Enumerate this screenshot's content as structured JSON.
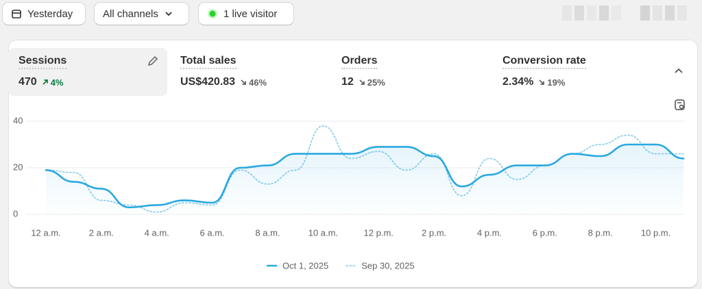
{
  "filters": {
    "date": "Yesterday",
    "channels": "All channels",
    "live": "1 live visitor"
  },
  "metrics": [
    {
      "label": "Sessions",
      "value": "470",
      "change": "4%",
      "direction": "up"
    },
    {
      "label": "Total sales",
      "value": "US$420.83",
      "change": "46%",
      "direction": "down"
    },
    {
      "label": "Orders",
      "value": "12",
      "change": "25%",
      "direction": "down"
    },
    {
      "label": "Conversion rate",
      "value": "2.34%",
      "change": "19%",
      "direction": "down"
    }
  ],
  "chart_data": {
    "type": "line",
    "categories": [
      "12 a.m.",
      null,
      "2 a.m.",
      null,
      "4 a.m.",
      null,
      "6 a.m.",
      null,
      "8 a.m.",
      null,
      "10 a.m.",
      null,
      "12 p.m.",
      null,
      "2 p.m.",
      null,
      "4 p.m.",
      null,
      "6 p.m.",
      null,
      "8 p.m.",
      null,
      "10 p.m.",
      null
    ],
    "series": [
      {
        "name": "Oct 1, 2025",
        "color": "#29a8e0",
        "style": "solid",
        "area": true,
        "values": [
          19,
          14,
          11,
          3,
          4,
          6,
          5,
          20,
          21,
          26,
          26,
          26,
          29,
          29,
          25,
          12,
          17,
          21,
          21,
          26,
          25,
          30,
          30,
          24
        ]
      },
      {
        "name": "Sep 30, 2025",
        "color": "#8fd0ee",
        "style": "dotted",
        "area": false,
        "values": [
          19,
          18,
          6,
          4,
          1,
          5,
          4,
          19,
          13,
          19,
          38,
          24,
          27,
          19,
          26,
          8,
          24,
          15,
          21,
          26,
          30,
          34,
          26,
          26
        ]
      }
    ],
    "ylim": [
      0,
      40
    ],
    "yticks": [
      0,
      20,
      40
    ],
    "grid": true
  }
}
